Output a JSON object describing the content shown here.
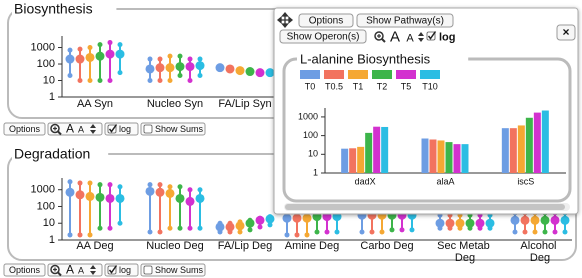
{
  "panels": [
    {
      "title": "Biosynthesis",
      "log": true,
      "ylim": [
        1,
        5000
      ],
      "yticks": [
        1000,
        100,
        10,
        1
      ],
      "categories": [
        "AA Syn",
        "Nucleo Syn",
        "FA/Lip Syn"
      ],
      "groups": [
        {
          "values": [
            200,
            200,
            250,
            300,
            400,
            400
          ],
          "low": [
            20,
            10,
            10,
            10,
            10,
            30
          ],
          "high": [
            700,
            800,
            1000,
            1500,
            2000,
            1500
          ]
        },
        {
          "values": [
            50,
            60,
            60,
            70,
            70,
            80
          ],
          "low": [
            10,
            10,
            10,
            20,
            10,
            20
          ],
          "high": [
            200,
            200,
            300,
            300,
            200,
            200
          ]
        },
        {
          "values": [
            60,
            50,
            40,
            35,
            30,
            30
          ],
          "low": [
            60,
            50,
            40,
            35,
            30,
            30
          ],
          "high": [
            60,
            50,
            40,
            35,
            30,
            30
          ]
        }
      ]
    },
    {
      "title": "Degradation",
      "log": true,
      "ylim": [
        1,
        5000
      ],
      "yticks": [
        1000,
        100,
        10,
        1
      ],
      "categories": [
        "AA Deg",
        "Nucleo Deg",
        "FA/Lip Deg",
        "Amine Deg",
        "Carbo Deg",
        "Sec Metab Deg",
        "Alcohol Deg"
      ],
      "groups": [
        {
          "values": [
            700,
            500,
            400,
            350,
            300,
            300
          ],
          "low": [
            2,
            2,
            2,
            5,
            5,
            10
          ],
          "high": [
            3000,
            2500,
            2500,
            2000,
            2000,
            1500
          ]
        },
        {
          "values": [
            800,
            700,
            600,
            300,
            200,
            300
          ],
          "low": [
            3,
            3,
            5,
            5,
            5,
            5
          ],
          "high": [
            2000,
            2000,
            1500,
            1500,
            1000,
            1000
          ]
        },
        {
          "values": [
            6,
            6,
            7,
            10,
            15,
            18
          ],
          "low": [
            3,
            3,
            3,
            4,
            6,
            8
          ],
          "high": [
            10,
            10,
            12,
            15,
            20,
            25
          ]
        },
        {
          "values": [
            20,
            20,
            20,
            25,
            25,
            25
          ],
          "low": [
            2,
            2,
            2,
            3,
            3,
            3
          ],
          "high": [
            60,
            60,
            60,
            60,
            60,
            60
          ]
        },
        {
          "values": [
            30,
            30,
            30,
            30,
            30,
            30
          ],
          "low": [
            3,
            3,
            3,
            4,
            4,
            4
          ],
          "high": [
            100,
            100,
            100,
            100,
            100,
            100
          ]
        },
        {
          "values": [
            10,
            10,
            10,
            10,
            10,
            10
          ],
          "low": [
            5,
            5,
            5,
            5,
            5,
            5
          ],
          "high": [
            30,
            30,
            30,
            30,
            30,
            30
          ]
        },
        {
          "values": [
            15,
            15,
            15,
            15,
            15,
            15
          ],
          "low": [
            3,
            3,
            3,
            3,
            3,
            3
          ],
          "high": [
            40,
            40,
            40,
            40,
            40,
            40
          ]
        }
      ]
    }
  ],
  "toolbar": {
    "options": "Options",
    "font": "A",
    "log": "log",
    "log_checked": true,
    "sums": "Show Sums",
    "sums_checked": false
  },
  "popup": {
    "options": "Options",
    "pathway": "Show Pathway(s)",
    "operon": "Show Operon(s)",
    "font": "A",
    "log": "log",
    "log_checked": true,
    "close": "×",
    "chart": {
      "type": "bar",
      "title": "L-alanine Biosynthesis",
      "log": true,
      "categories": [
        "dadX",
        "alaA",
        "iscS"
      ],
      "series": [
        {
          "name": "T0",
          "color": "#6d9de3",
          "values": [
            20,
            70,
            250
          ]
        },
        {
          "name": "T0.5",
          "color": "#f2735f",
          "values": [
            21,
            62,
            250
          ]
        },
        {
          "name": "T1",
          "color": "#f5a833",
          "values": [
            25,
            55,
            350
          ]
        },
        {
          "name": "T2",
          "color": "#3db54a",
          "values": [
            140,
            45,
            900
          ]
        },
        {
          "name": "T5",
          "color": "#d331cf",
          "values": [
            300,
            35,
            1700
          ]
        },
        {
          "name": "T10",
          "color": "#2bbde3",
          "values": [
            290,
            35,
            2200
          ]
        }
      ],
      "ylim": [
        1,
        3000
      ],
      "yticks": [
        1,
        10,
        100,
        1000
      ]
    }
  }
}
